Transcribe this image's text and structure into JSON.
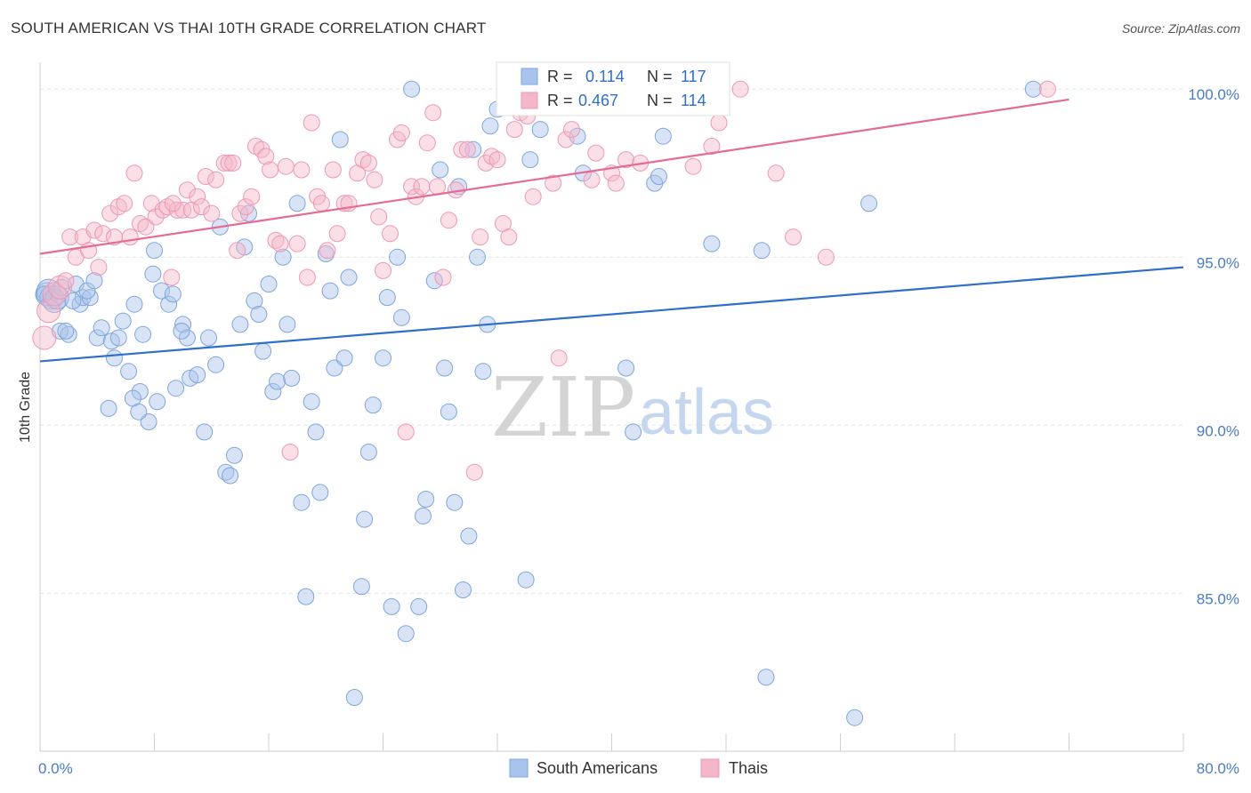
{
  "title": "SOUTH AMERICAN VS THAI 10TH GRADE CORRELATION CHART",
  "source": "Source: ZipAtlas.com",
  "watermark": {
    "zip": "ZIP",
    "atlas": "atlas"
  },
  "colors": {
    "blue_fill": "#a9c4ec",
    "blue_stroke": "#7fa6dd",
    "blue_line": "#2f6fcb",
    "pink_fill": "#f4b7c9",
    "pink_stroke": "#ee98b3",
    "pink_line": "#e46b96",
    "tick_label": "#4a7bc8",
    "grid": "#e3e3e3"
  },
  "legend_top": {
    "rows": [
      {
        "r_label": "R =",
        "r_value": "0.114",
        "n_label": "N =",
        "n_value": "117"
      },
      {
        "r_label": "R =",
        "r_value": "0.467",
        "n_label": "N =",
        "n_value": "114"
      }
    ]
  },
  "legend_bottom": [
    "South Americans",
    "Thais"
  ],
  "chart_data": {
    "type": "scatter",
    "xlabel": "",
    "ylabel": "10th Grade",
    "xlim": [
      0,
      80
    ],
    "ylim": [
      80.3,
      100.8
    ],
    "x_tick_labels": [
      "0.0%",
      "80.0%"
    ],
    "y_ticks": [
      85,
      90,
      95,
      100
    ],
    "y_tick_labels": [
      "85.0%",
      "90.0%",
      "95.0%",
      "100.0%"
    ],
    "grid": "horizontal dashed",
    "legend_position": "top-center",
    "series": [
      {
        "name": "South Americans",
        "R": 0.114,
        "N": 117,
        "trend": {
          "x": [
            0,
            80
          ],
          "y": [
            91.9,
            94.7
          ]
        },
        "points": [
          [
            0.5,
            93.9
          ],
          [
            0.6,
            94.0
          ],
          [
            0.8,
            93.8
          ],
          [
            1.0,
            93.7
          ],
          [
            1.2,
            93.8
          ],
          [
            1.5,
            94.1
          ],
          [
            1.4,
            92.8
          ],
          [
            2.0,
            92.7
          ],
          [
            2.5,
            94.2
          ],
          [
            2.8,
            93.6
          ],
          [
            3.0,
            93.8
          ],
          [
            3.5,
            93.8
          ],
          [
            3.3,
            94.0
          ],
          [
            4.0,
            92.6
          ],
          [
            4.3,
            92.9
          ],
          [
            5.0,
            92.5
          ],
          [
            5.5,
            92.6
          ],
          [
            5.8,
            93.1
          ],
          [
            6.2,
            91.6
          ],
          [
            6.6,
            93.6
          ],
          [
            7.2,
            92.7
          ],
          [
            7.0,
            91.0
          ],
          [
            6.5,
            90.8
          ],
          [
            7.6,
            90.1
          ],
          [
            4.8,
            90.5
          ],
          [
            8.0,
            95.2
          ],
          [
            8.5,
            94.0
          ],
          [
            8.2,
            90.7
          ],
          [
            9.0,
            93.6
          ],
          [
            9.3,
            93.9
          ],
          [
            9.5,
            91.1
          ],
          [
            10.0,
            93.0
          ],
          [
            10.5,
            91.4
          ],
          [
            10.3,
            92.6
          ],
          [
            11.0,
            91.5
          ],
          [
            11.5,
            89.8
          ],
          [
            11.8,
            92.6
          ],
          [
            12.3,
            91.8
          ],
          [
            12.6,
            95.9
          ],
          [
            13.0,
            88.6
          ],
          [
            13.3,
            88.5
          ],
          [
            13.6,
            89.1
          ],
          [
            14.0,
            93.0
          ],
          [
            14.3,
            95.3
          ],
          [
            14.6,
            96.3
          ],
          [
            15.0,
            93.7
          ],
          [
            15.3,
            93.3
          ],
          [
            15.6,
            92.2
          ],
          [
            16.0,
            94.2
          ],
          [
            16.3,
            91.0
          ],
          [
            16.6,
            91.3
          ],
          [
            17.0,
            95.0
          ],
          [
            17.3,
            93.0
          ],
          [
            17.6,
            91.4
          ],
          [
            18.0,
            96.6
          ],
          [
            18.3,
            87.7
          ],
          [
            18.6,
            84.9
          ],
          [
            19.0,
            90.7
          ],
          [
            19.3,
            89.8
          ],
          [
            19.6,
            88.0
          ],
          [
            20.0,
            95.1
          ],
          [
            20.3,
            94.0
          ],
          [
            20.6,
            91.7
          ],
          [
            21.0,
            98.5
          ],
          [
            21.3,
            92.0
          ],
          [
            21.6,
            94.4
          ],
          [
            22.0,
            81.9
          ],
          [
            22.5,
            85.2
          ],
          [
            22.7,
            87.2
          ],
          [
            23.0,
            89.2
          ],
          [
            23.3,
            90.6
          ],
          [
            24.0,
            92.0
          ],
          [
            24.3,
            93.8
          ],
          [
            24.6,
            84.6
          ],
          [
            25.0,
            95.0
          ],
          [
            25.3,
            93.2
          ],
          [
            25.6,
            83.8
          ],
          [
            26.0,
            100.0
          ],
          [
            26.5,
            84.6
          ],
          [
            26.8,
            87.3
          ],
          [
            27.0,
            87.8
          ],
          [
            27.6,
            94.3
          ],
          [
            28.0,
            97.6
          ],
          [
            28.3,
            91.7
          ],
          [
            28.6,
            90.4
          ],
          [
            29.0,
            87.7
          ],
          [
            29.3,
            97.1
          ],
          [
            29.6,
            85.1
          ],
          [
            30.0,
            86.7
          ],
          [
            30.3,
            98.2
          ],
          [
            30.6,
            95.0
          ],
          [
            31.0,
            91.6
          ],
          [
            31.5,
            98.9
          ],
          [
            31.3,
            93.0
          ],
          [
            32.0,
            99.4
          ],
          [
            34.0,
            85.4
          ],
          [
            34.3,
            97.9
          ],
          [
            35.0,
            98.8
          ],
          [
            35.5,
            100.0
          ],
          [
            37.0,
            99.9
          ],
          [
            37.6,
            98.6
          ],
          [
            38.0,
            97.5
          ],
          [
            39.0,
            99.9
          ],
          [
            41.0,
            91.7
          ],
          [
            41.5,
            89.8
          ],
          [
            42.0,
            100.0
          ],
          [
            43.0,
            97.2
          ],
          [
            43.3,
            97.4
          ],
          [
            43.6,
            98.6
          ],
          [
            44.0,
            100.0
          ],
          [
            44.3,
            100.0
          ],
          [
            47.0,
            95.4
          ],
          [
            50.5,
            95.2
          ],
          [
            50.8,
            82.5
          ],
          [
            57.0,
            81.3
          ],
          [
            58.0,
            96.6
          ],
          [
            69.5,
            100.0
          ],
          [
            0.3,
            93.9
          ],
          [
            1.8,
            92.8
          ],
          [
            2.3,
            93.7
          ],
          [
            3.8,
            94.3
          ],
          [
            5.2,
            92.0
          ],
          [
            6.9,
            90.4
          ],
          [
            7.9,
            94.5
          ],
          [
            9.9,
            92.8
          ]
        ]
      },
      {
        "name": "Thais",
        "R": 0.467,
        "N": 114,
        "trend": {
          "x": [
            0,
            80
          ],
          "y": [
            95.1,
            100.2
          ]
        },
        "points": [
          [
            0.3,
            92.6
          ],
          [
            0.6,
            93.4
          ],
          [
            1.0,
            93.9
          ],
          [
            1.4,
            94.1
          ],
          [
            1.8,
            94.3
          ],
          [
            2.1,
            95.6
          ],
          [
            2.5,
            95.0
          ],
          [
            3.0,
            95.6
          ],
          [
            3.4,
            95.2
          ],
          [
            3.8,
            95.8
          ],
          [
            4.1,
            94.7
          ],
          [
            4.4,
            95.7
          ],
          [
            4.9,
            96.3
          ],
          [
            5.2,
            95.6
          ],
          [
            5.5,
            96.5
          ],
          [
            5.9,
            96.6
          ],
          [
            6.3,
            95.6
          ],
          [
            6.6,
            97.5
          ],
          [
            7.0,
            96.0
          ],
          [
            7.4,
            95.9
          ],
          [
            7.8,
            96.6
          ],
          [
            8.1,
            96.2
          ],
          [
            8.6,
            96.4
          ],
          [
            8.9,
            96.5
          ],
          [
            9.2,
            94.4
          ],
          [
            9.6,
            96.4
          ],
          [
            10.0,
            96.4
          ],
          [
            10.3,
            97.0
          ],
          [
            10.6,
            96.4
          ],
          [
            11.0,
            96.8
          ],
          [
            11.3,
            96.5
          ],
          [
            11.6,
            97.4
          ],
          [
            12.0,
            96.3
          ],
          [
            12.3,
            97.3
          ],
          [
            12.9,
            97.8
          ],
          [
            13.2,
            97.8
          ],
          [
            13.5,
            97.8
          ],
          [
            13.8,
            95.2
          ],
          [
            14.0,
            96.3
          ],
          [
            14.4,
            96.5
          ],
          [
            14.8,
            96.8
          ],
          [
            15.1,
            98.3
          ],
          [
            15.5,
            98.2
          ],
          [
            15.8,
            98.0
          ],
          [
            16.1,
            97.6
          ],
          [
            16.5,
            95.5
          ],
          [
            16.8,
            95.4
          ],
          [
            17.2,
            97.7
          ],
          [
            17.5,
            89.2
          ],
          [
            18.0,
            95.4
          ],
          [
            18.3,
            97.6
          ],
          [
            18.7,
            94.4
          ],
          [
            19.0,
            99.0
          ],
          [
            19.4,
            96.8
          ],
          [
            19.7,
            96.6
          ],
          [
            20.1,
            95.2
          ],
          [
            20.5,
            97.6
          ],
          [
            20.8,
            95.7
          ],
          [
            21.3,
            96.6
          ],
          [
            21.6,
            96.6
          ],
          [
            22.2,
            97.5
          ],
          [
            22.6,
            97.9
          ],
          [
            23.0,
            97.8
          ],
          [
            23.4,
            97.3
          ],
          [
            23.7,
            96.2
          ],
          [
            24.0,
            94.6
          ],
          [
            24.5,
            95.7
          ],
          [
            25.0,
            98.5
          ],
          [
            25.3,
            98.7
          ],
          [
            25.6,
            89.8
          ],
          [
            26.0,
            97.1
          ],
          [
            26.3,
            96.8
          ],
          [
            26.7,
            97.1
          ],
          [
            27.1,
            98.4
          ],
          [
            27.5,
            99.3
          ],
          [
            27.8,
            97.1
          ],
          [
            28.2,
            94.4
          ],
          [
            28.6,
            96.1
          ],
          [
            29.1,
            97.0
          ],
          [
            29.5,
            98.2
          ],
          [
            29.9,
            98.2
          ],
          [
            30.4,
            88.6
          ],
          [
            30.8,
            95.6
          ],
          [
            31.2,
            97.8
          ],
          [
            31.6,
            98.0
          ],
          [
            32.0,
            97.9
          ],
          [
            32.4,
            96.0
          ],
          [
            32.8,
            95.6
          ],
          [
            33.2,
            98.8
          ],
          [
            33.6,
            99.3
          ],
          [
            34.1,
            99.2
          ],
          [
            34.5,
            96.8
          ],
          [
            35.1,
            100.0
          ],
          [
            35.5,
            99.6
          ],
          [
            35.9,
            97.2
          ],
          [
            36.3,
            92.0
          ],
          [
            36.8,
            98.5
          ],
          [
            37.2,
            98.8
          ],
          [
            38.1,
            99.5
          ],
          [
            38.6,
            97.3
          ],
          [
            38.9,
            98.1
          ],
          [
            40.0,
            97.5
          ],
          [
            40.3,
            97.2
          ],
          [
            41.0,
            97.9
          ],
          [
            42.0,
            97.8
          ],
          [
            42.5,
            99.5
          ],
          [
            45.0,
            100.0
          ],
          [
            45.7,
            97.7
          ],
          [
            47.0,
            98.3
          ],
          [
            47.5,
            99.0
          ],
          [
            49.0,
            100.0
          ],
          [
            51.5,
            97.5
          ],
          [
            52.7,
            95.6
          ],
          [
            55.0,
            95.0
          ],
          [
            70.5,
            100.0
          ],
          [
            9.3,
            96.6
          ]
        ]
      }
    ]
  }
}
